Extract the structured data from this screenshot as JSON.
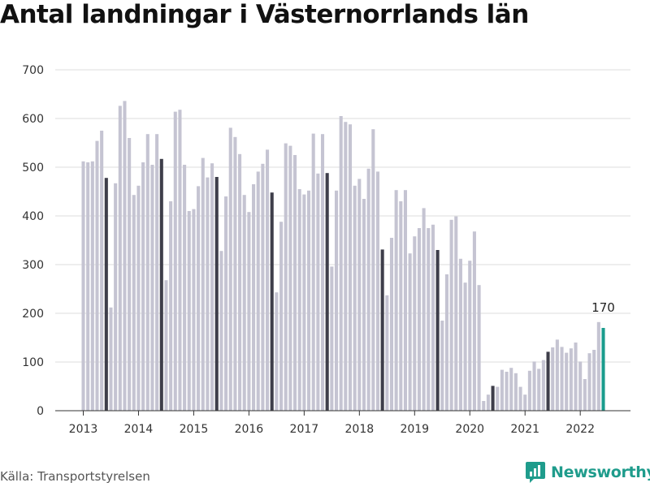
{
  "title": "Antal landningar i Västernorrlands län",
  "source": "Källa: Transportstyrelsen",
  "brand": {
    "name": "Newsworthy",
    "icon": "chart-logo-icon",
    "color": "#1f9c8c"
  },
  "chart_data": {
    "type": "bar",
    "title": "Antal landningar i Västernorrlands län",
    "xlabel": "",
    "ylabel": "",
    "ylim": [
      0,
      700
    ],
    "yticks": [
      0,
      100,
      200,
      300,
      400,
      500,
      600,
      700
    ],
    "xticks": [
      "2013",
      "2014",
      "2015",
      "2016",
      "2017",
      "2018",
      "2019",
      "2020",
      "2021",
      "2022"
    ],
    "grid": true,
    "colors": {
      "default": "#c5c4d2",
      "june": "#3e3e4a",
      "latest": "#1a9c8d"
    },
    "annotation": {
      "text": "170",
      "target": "last"
    },
    "series": [
      {
        "year": "2013",
        "values": [
          512,
          510,
          512,
          554,
          575,
          478,
          212,
          467,
          626,
          636,
          560,
          443
        ]
      },
      {
        "year": "2014",
        "values": [
          462,
          510,
          568,
          505,
          568,
          517,
          268,
          430,
          614,
          618,
          505,
          410
        ]
      },
      {
        "year": "2015",
        "values": [
          414,
          461,
          519,
          479,
          508,
          480,
          328,
          440,
          581,
          562,
          527,
          443
        ]
      },
      {
        "year": "2016",
        "values": [
          408,
          465,
          491,
          507,
          536,
          448,
          243,
          388,
          549,
          544,
          525,
          455
        ]
      },
      {
        "year": "2017",
        "values": [
          444,
          452,
          569,
          487,
          568,
          488,
          296,
          452,
          605,
          593,
          588,
          462
        ]
      },
      {
        "year": "2018",
        "values": [
          476,
          435,
          497,
          578,
          491,
          331,
          237,
          355,
          453,
          430,
          453,
          323
        ]
      },
      {
        "year": "2019",
        "values": [
          358,
          375,
          416,
          375,
          382,
          330,
          185,
          280,
          392,
          399,
          312,
          263
        ]
      },
      {
        "year": "2020",
        "values": [
          308,
          368,
          258,
          20,
          33,
          51,
          49,
          84,
          80,
          88,
          77,
          49
        ]
      },
      {
        "year": "2021",
        "values": [
          33,
          82,
          101,
          86,
          104,
          121,
          130,
          146,
          131,
          119,
          128,
          140
        ]
      },
      {
        "year": "2022",
        "values": [
          101,
          65,
          118,
          125,
          182,
          170
        ]
      }
    ]
  }
}
